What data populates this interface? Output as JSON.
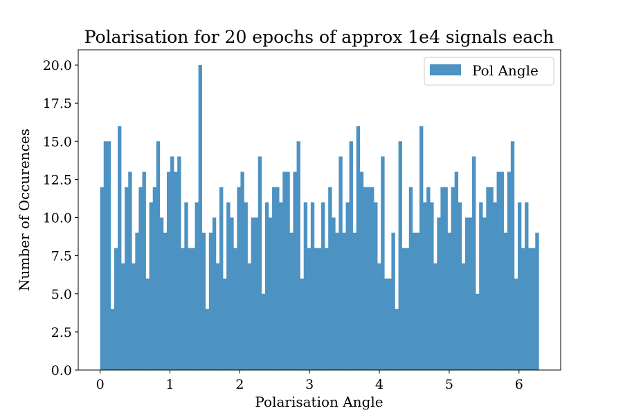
{
  "chart_data": {
    "type": "bar",
    "title": "Polarisation for 20 epochs of approx 1e4 signals each",
    "xlabel": "Polarisation Angle",
    "ylabel": "Number of Occurences",
    "xlim": [
      -0.314,
      6.597
    ],
    "ylim": [
      0,
      21
    ],
    "x_range": [
      0,
      6.2832
    ],
    "bins": 125,
    "xticks": [
      0,
      1,
      2,
      3,
      4,
      5,
      6
    ],
    "xtick_labels": [
      "0",
      "1",
      "2",
      "3",
      "4",
      "5",
      "6"
    ],
    "yticks": [
      0,
      2.5,
      5,
      7.5,
      10,
      12.5,
      15,
      17.5,
      20
    ],
    "ytick_labels": [
      "0.0",
      "2.5",
      "5.0",
      "7.5",
      "10.0",
      "12.5",
      "15.0",
      "17.5",
      "20.0"
    ],
    "grid": false,
    "legend_position": "top-right",
    "series": [
      {
        "name": "Pol Angle",
        "color": "#4c92c3",
        "values": [
          12,
          15,
          15,
          4,
          8,
          16,
          7,
          12,
          13,
          7,
          9,
          12,
          13,
          6,
          11,
          12,
          15,
          10,
          9,
          13,
          14,
          13,
          14,
          8,
          11,
          8,
          8,
          11,
          20,
          9,
          4,
          9,
          10,
          7,
          12,
          6,
          11,
          10,
          8,
          12,
          13,
          11,
          7,
          10,
          10,
          14,
          5,
          11,
          10,
          12,
          12,
          11,
          13,
          13,
          9,
          13,
          15,
          6,
          11,
          8,
          11,
          8,
          8,
          11,
          8,
          12,
          10,
          9,
          14,
          9,
          11,
          15,
          9,
          16,
          13,
          12,
          12,
          12,
          11,
          7,
          14,
          6,
          6,
          9,
          4,
          15,
          8,
          8,
          12,
          9,
          9,
          16,
          11,
          12,
          11,
          7,
          10,
          12,
          12,
          9,
          12,
          13,
          11,
          7,
          10,
          10,
          14,
          5,
          11,
          10,
          12,
          12,
          11,
          13,
          13,
          9,
          13,
          15,
          6,
          11,
          8,
          11,
          8,
          8,
          9
        ]
      }
    ]
  }
}
